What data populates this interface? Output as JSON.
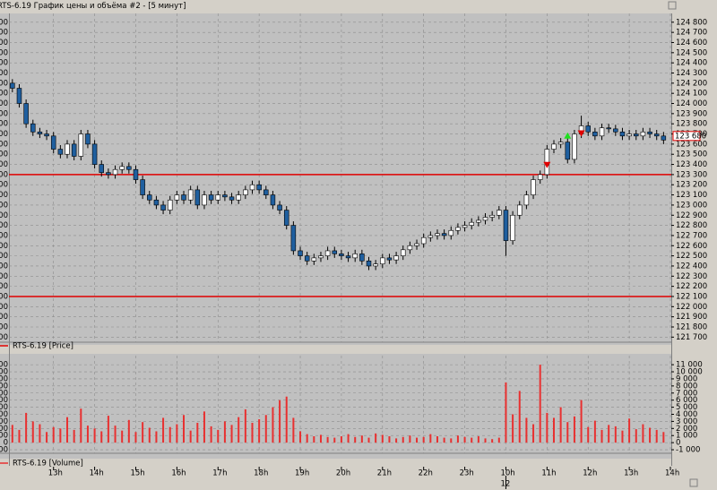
{
  "window": {
    "title": "RTS-6.19 График цены и объёма #2 - [5 минут]"
  },
  "chart_data": [
    {
      "type": "candlestick",
      "series": [
        {
          "name": "RTS-6.19 [Price]",
          "color": "#e00000",
          "up_color": "#ffffff",
          "down_color": "#1f5f9f",
          "open": [
            124200,
            124150,
            124000,
            123800,
            123720,
            123700,
            123680,
            123550,
            123500,
            123600,
            123480,
            123700,
            123600,
            123400,
            123320,
            123300,
            123350,
            123380,
            123350,
            123250,
            123100,
            123050,
            123000,
            122950,
            123050,
            123100,
            123050,
            123150,
            123000,
            123100,
            123050,
            123100,
            123080,
            123050,
            123100,
            123150,
            123200,
            123150,
            123100,
            123000,
            122950,
            122800,
            122550,
            122500,
            122450,
            122480,
            122500,
            122550,
            122520,
            122500,
            122480,
            122520,
            122450,
            122400,
            122420,
            122480,
            122460,
            122500,
            122560,
            122600,
            122620,
            122680,
            122700,
            122720,
            122700,
            122750,
            122780,
            122800,
            122830,
            122850,
            122880,
            122900,
            122950,
            122650,
            122900,
            123000,
            123100,
            123250,
            123300,
            123550,
            123600,
            123620,
            123450,
            123700,
            123780,
            123720,
            123680,
            123760,
            123750,
            123720,
            123680,
            123700,
            123680,
            123720,
            123700,
            123680
          ],
          "high": [
            124240,
            124190,
            124040,
            123840,
            123760,
            123740,
            123720,
            123590,
            123640,
            123640,
            123740,
            123740,
            123640,
            123440,
            123360,
            123390,
            123420,
            123420,
            123390,
            123290,
            123140,
            123090,
            123040,
            123090,
            123140,
            123140,
            123190,
            123190,
            123140,
            123140,
            123140,
            123140,
            123120,
            123140,
            123190,
            123240,
            123240,
            123190,
            123140,
            123040,
            122990,
            122840,
            122590,
            122540,
            122520,
            122540,
            122590,
            122590,
            122560,
            122540,
            122560,
            122560,
            122490,
            122460,
            122520,
            122520,
            122540,
            122600,
            122640,
            122660,
            122720,
            122740,
            122760,
            122760,
            122790,
            122820,
            122840,
            122870,
            122890,
            122920,
            122940,
            122990,
            122990,
            122940,
            123040,
            123140,
            123290,
            123340,
            123590,
            123640,
            123660,
            123660,
            123740,
            123880,
            123820,
            123760,
            123800,
            123800,
            123790,
            123760,
            123740,
            123740,
            123760,
            123760,
            123740,
            123720
          ],
          "low": [
            124110,
            123960,
            123760,
            123680,
            123660,
            123640,
            123510,
            123460,
            123460,
            123440,
            123440,
            123560,
            123360,
            123280,
            123260,
            123260,
            123310,
            123310,
            123210,
            123060,
            123010,
            122960,
            122910,
            122910,
            123010,
            123010,
            123010,
            122960,
            122960,
            123010,
            123010,
            123040,
            123010,
            123010,
            123060,
            123110,
            123110,
            123060,
            122960,
            122910,
            122760,
            122510,
            122460,
            122410,
            122410,
            122440,
            122460,
            122480,
            122460,
            122440,
            122440,
            122410,
            122360,
            122360,
            122380,
            122420,
            122420,
            122460,
            122520,
            122560,
            122580,
            122640,
            122660,
            122660,
            122660,
            122710,
            122740,
            122760,
            122790,
            122810,
            122840,
            122860,
            122500,
            122610,
            122860,
            122960,
            123060,
            123210,
            123260,
            123510,
            123560,
            123410,
            123410,
            123660,
            123680,
            123640,
            123640,
            123710,
            123680,
            123640,
            123640,
            123640,
            123640,
            123660,
            123640,
            123600
          ],
          "close": [
            124150,
            124000,
            123800,
            123720,
            123700,
            123680,
            123550,
            123500,
            123600,
            123480,
            123700,
            123600,
            123400,
            123320,
            123300,
            123350,
            123380,
            123350,
            123250,
            123100,
            123050,
            123000,
            122950,
            123050,
            123100,
            123050,
            123150,
            123000,
            123100,
            123050,
            123100,
            123080,
            123050,
            123100,
            123150,
            123200,
            123150,
            123100,
            123000,
            122950,
            122800,
            122550,
            122500,
            122450,
            122480,
            122500,
            122550,
            122520,
            122500,
            122480,
            122520,
            122450,
            122400,
            122420,
            122480,
            122460,
            122500,
            122560,
            122600,
            122620,
            122680,
            122700,
            122720,
            122700,
            122750,
            122780,
            122800,
            122830,
            122850,
            122880,
            122900,
            122950,
            122650,
            122900,
            123000,
            123100,
            123250,
            123300,
            123550,
            123600,
            123620,
            123450,
            123700,
            123780,
            123720,
            123680,
            123760,
            123750,
            123720,
            123680,
            123700,
            123680,
            123720,
            123700,
            123680,
            123640
          ]
        }
      ],
      "xlim": [
        -0.5,
        96
      ],
      "ylim": [
        121650,
        124860
      ],
      "yticks": [
        {
          "value": 124800,
          "label": "124 800"
        },
        {
          "value": 124700,
          "label": "124 700"
        },
        {
          "value": 124600,
          "label": "124 600"
        },
        {
          "value": 124500,
          "label": "124 500"
        },
        {
          "value": 124400,
          "label": "124 400"
        },
        {
          "value": 124300,
          "label": "124 300"
        },
        {
          "value": 124200,
          "label": "124 200"
        },
        {
          "value": 124100,
          "label": "124 100"
        },
        {
          "value": 124000,
          "label": "124 000"
        },
        {
          "value": 123900,
          "label": "123 900"
        },
        {
          "value": 123800,
          "label": "123 800"
        },
        {
          "value": 123700,
          "label": "123 700"
        },
        {
          "value": 123600,
          "label": "123 600"
        },
        {
          "value": 123500,
          "label": "123 500"
        },
        {
          "value": 123400,
          "label": "123 400"
        },
        {
          "value": 123300,
          "label": "123 300"
        },
        {
          "value": 123200,
          "label": "123 200"
        },
        {
          "value": 123100,
          "label": "123 100"
        },
        {
          "value": 123000,
          "label": "123 000"
        },
        {
          "value": 122900,
          "label": "122 900"
        },
        {
          "value": 122800,
          "label": "122 800"
        },
        {
          "value": 122700,
          "label": "122 700"
        },
        {
          "value": 122600,
          "label": "122 600"
        },
        {
          "value": 122500,
          "label": "122 500"
        },
        {
          "value": 122400,
          "label": "122 400"
        },
        {
          "value": 122300,
          "label": "122 300"
        },
        {
          "value": 122200,
          "label": "122 200"
        },
        {
          "value": 122100,
          "label": "122 100"
        },
        {
          "value": 122000,
          "label": "122 000"
        },
        {
          "value": 121900,
          "label": "121 900"
        },
        {
          "value": 121800,
          "label": "121 800"
        },
        {
          "value": 121700,
          "label": "121 700"
        }
      ],
      "hlines": [
        {
          "value": 123300,
          "color": "#e00000"
        },
        {
          "value": 122100,
          "color": "#e00000"
        }
      ],
      "last_price": {
        "value": 123680,
        "label": "123 680",
        "color": "#e00000"
      },
      "signals": [
        {
          "index": 78,
          "price": 123390,
          "color": "#e00000",
          "direction": "down"
        },
        {
          "index": 81,
          "price": 123680,
          "color": "#20e020",
          "direction": "up"
        },
        {
          "index": 83,
          "price": 123700,
          "color": "#e00000",
          "direction": "down"
        }
      ],
      "grid": true
    },
    {
      "type": "bar",
      "series": [
        {
          "name": "RTS-6.19 [Volume]",
          "color": "#e83030",
          "values": [
            2500,
            1800,
            4200,
            3000,
            2600,
            1500,
            2200,
            2000,
            3600,
            1800,
            4800,
            2400,
            2000,
            1600,
            3800,
            2400,
            1700,
            3200,
            1500,
            2900,
            2100,
            1600,
            3500,
            2200,
            2600,
            3900,
            1700,
            2800,
            4400,
            2300,
            1800,
            3000,
            2500,
            3600,
            4700,
            2800,
            3300,
            3900,
            5000,
            6000,
            6500,
            3500,
            1600,
            1200,
            900,
            1100,
            800,
            700,
            900,
            1200,
            800,
            1000,
            700,
            1300,
            1100,
            900,
            600,
            800,
            1000,
            700,
            800,
            1200,
            900,
            700,
            600,
            1000,
            800,
            700,
            900,
            600,
            500,
            700,
            8500,
            4000,
            7300,
            3500,
            2600,
            11000,
            4200,
            3500,
            5000,
            2900,
            3700,
            6000,
            2200,
            3100,
            1800,
            2500,
            2300,
            1700,
            3400,
            1900,
            2600,
            2100,
            1800,
            1500
          ]
        }
      ],
      "xlim": [
        -0.5,
        96
      ],
      "xticks": [
        {
          "value": 6,
          "label": "13h"
        },
        {
          "value": 12,
          "label": "14h"
        },
        {
          "value": 18,
          "label": "15h"
        },
        {
          "value": 24,
          "label": "16h"
        },
        {
          "value": 30,
          "label": "17h"
        },
        {
          "value": 36,
          "label": "18h"
        },
        {
          "value": 42,
          "label": "19h"
        },
        {
          "value": 48,
          "label": "20h"
        },
        {
          "value": 54,
          "label": "21h"
        },
        {
          "value": 60,
          "label": "22h"
        },
        {
          "value": 66,
          "label": "23h"
        },
        {
          "value": 72,
          "label": "10h"
        },
        {
          "value": 78,
          "label": "11h"
        },
        {
          "value": 84,
          "label": "12h"
        },
        {
          "value": 90,
          "label": "13h"
        },
        {
          "value": 96,
          "label": "14h"
        }
      ],
      "date_ticks": [
        {
          "value": 72,
          "label": "12"
        }
      ],
      "ylim": [
        -1500,
        11900
      ],
      "yticks": [
        {
          "value": 11000,
          "label": "11 000"
        },
        {
          "value": 10000,
          "label": "10 000"
        },
        {
          "value": 9000,
          "label": "9 000"
        },
        {
          "value": 8000,
          "label": "8 000"
        },
        {
          "value": 7000,
          "label": "7 000"
        },
        {
          "value": 6000,
          "label": "6 000"
        },
        {
          "value": 5000,
          "label": "5 000"
        },
        {
          "value": 4000,
          "label": "4 000"
        },
        {
          "value": 3000,
          "label": "3 000"
        },
        {
          "value": 2000,
          "label": "2 000"
        },
        {
          "value": 1000,
          "label": "1 000"
        },
        0,
        {
          "value": -1000,
          "label": "-1 000"
        }
      ],
      "grid": true
    }
  ]
}
